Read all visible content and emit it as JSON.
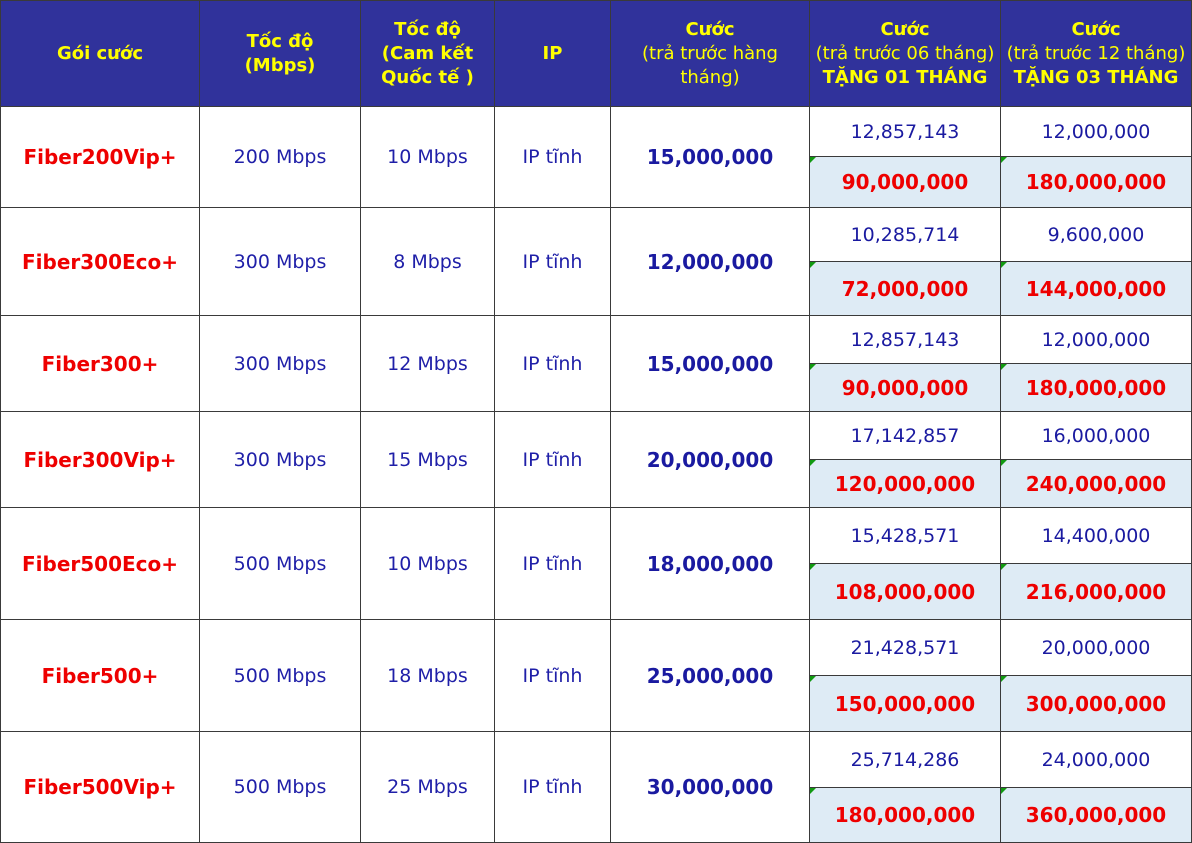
{
  "header": {
    "package": "Gói cước",
    "speed": [
      "Tốc độ",
      "(Mbps)"
    ],
    "intl": [
      "Tốc độ",
      "(Cam kết",
      "Quốc tế )"
    ],
    "ip": "IP",
    "monthly": {
      "title": "Cước",
      "sub": "(trả trước hàng tháng)"
    },
    "six_month": {
      "title": "Cước",
      "sub": "(trả trước 06 tháng)",
      "bonus": "TẶNG 01 THÁNG"
    },
    "twelve_month": {
      "title": "Cước",
      "sub": "(trả trước 12 tháng)",
      "bonus": "TẶNG 03 THÁNG"
    }
  },
  "rows": [
    {
      "package": "Fiber200Vip+",
      "speed": "200 Mbps",
      "intl": "10 Mbps",
      "ip": "IP tĩnh",
      "monthly": "15,000,000",
      "six_per": "12,857,143",
      "twelve_per": "12,000,000",
      "six_total": "90,000,000",
      "twelve_total": "180,000,000"
    },
    {
      "package": "Fiber300Eco+",
      "speed": "300 Mbps",
      "intl": "8 Mbps",
      "ip": "IP tĩnh",
      "monthly": "12,000,000",
      "six_per": "10,285,714",
      "twelve_per": "9,600,000",
      "six_total": "72,000,000",
      "twelve_total": "144,000,000"
    },
    {
      "package": "Fiber300+",
      "speed": "300 Mbps",
      "intl": "12 Mbps",
      "ip": "IP tĩnh",
      "monthly": "15,000,000",
      "six_per": "12,857,143",
      "twelve_per": "12,000,000",
      "six_total": "90,000,000",
      "twelve_total": "180,000,000"
    },
    {
      "package": "Fiber300Vip+",
      "speed": "300 Mbps",
      "intl": "15 Mbps",
      "ip": "IP tĩnh",
      "monthly": "20,000,000",
      "six_per": "17,142,857",
      "twelve_per": "16,000,000",
      "six_total": "120,000,000",
      "twelve_total": "240,000,000"
    },
    {
      "package": "Fiber500Eco+",
      "speed": "500 Mbps",
      "intl": "10 Mbps",
      "ip": "IP tĩnh",
      "monthly": "18,000,000",
      "six_per": "15,428,571",
      "twelve_per": "14,400,000",
      "six_total": "108,000,000",
      "twelve_total": "216,000,000"
    },
    {
      "package": "Fiber500+",
      "speed": "500 Mbps",
      "intl": "18 Mbps",
      "ip": "IP tĩnh",
      "monthly": "25,000,000",
      "six_per": "21,428,571",
      "twelve_per": "20,000,000",
      "six_total": "150,000,000",
      "twelve_total": "300,000,000"
    },
    {
      "package": "Fiber500Vip+",
      "speed": "500 Mbps",
      "intl": "25 Mbps",
      "ip": "IP tĩnh",
      "monthly": "30,000,000",
      "six_per": "25,714,286",
      "twelve_per": "24,000,000",
      "six_total": "180,000,000",
      "twelve_total": "360,000,000"
    }
  ],
  "colors": {
    "header_bg": "#30329b",
    "header_text": "#ffff00",
    "package_text": "#ee0000",
    "value_text": "#1a1aa0",
    "total_bg": "#deebf5",
    "corner_mark": "#119911"
  }
}
